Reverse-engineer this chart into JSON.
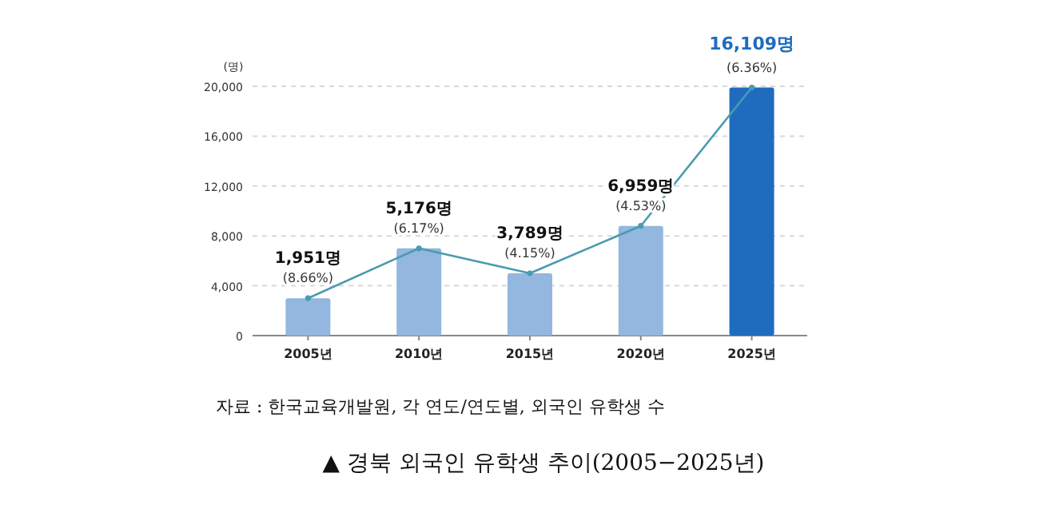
{
  "chart_data": {
    "type": "bar",
    "title": "▲ 경북 외국인 유학생 추이(2005−2025년)",
    "ylabel": "(명)",
    "categories": [
      "2005년",
      "2010년",
      "2015년",
      "2020년",
      "2025년"
    ],
    "series": [
      {
        "values": [
          3000,
          7000,
          5000,
          8800,
          19900
        ],
        "colors": [
          "#93b7de",
          "#93b7de",
          "#93b7de",
          "#93b7de",
          "#1f6cbf"
        ]
      },
      {
        "type": "line",
        "color": "#4a9bb0",
        "values": [
          3000,
          7000,
          5000,
          8800,
          19900
        ],
        "marker": "circle"
      }
    ],
    "ylim": [
      0,
      20000
    ],
    "yticks": [
      {
        "value": 0,
        "label": "0"
      },
      {
        "value": 4000,
        "label": "4,000"
      },
      {
        "value": 8000,
        "label": "8,000"
      },
      {
        "value": 12000,
        "label": "12,000"
      },
      {
        "value": 16000,
        "label": "16,000"
      },
      {
        "value": 20000,
        "label": "20,000"
      }
    ],
    "grid": "y",
    "annotations": [
      {
        "text": "1,951명 (8.66%)",
        "x": "2005년",
        "y": 3000
      },
      {
        "text": "5,176명 (6.17%)",
        "x": "2010년",
        "y": 7000
      },
      {
        "text": "3,789명 (4.15%)",
        "x": "2015년",
        "y": 5000
      },
      {
        "text": "6,959명 (4.53%)",
        "x": "2020년",
        "y": 8800
      },
      {
        "text": "16,109명 (6.36%)",
        "x": "2025년",
        "y": 19900
      },
      "자료 : 한국교육개발원, 각 연도/연도별, 외국인 유학생 수"
    ]
  }
}
